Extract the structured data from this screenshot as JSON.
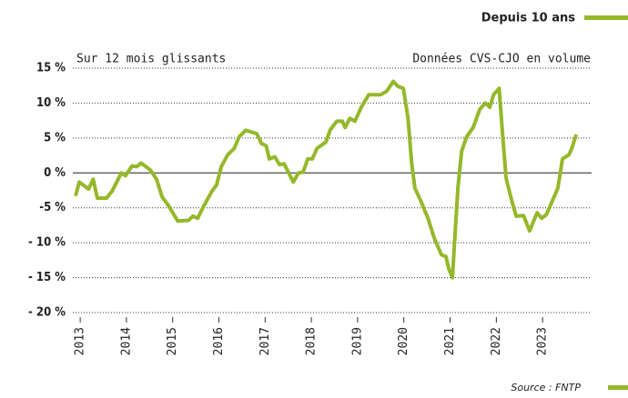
{
  "chart_data": {
    "type": "line",
    "title": "Depuis 10 ans",
    "subtitle": "Sur 12 mois glissants",
    "annotation": "Données CVS-CJO en volume",
    "source": "Source : FNTP",
    "color": "#95b82a",
    "grid": true,
    "x": [
      2012.9,
      2012.98,
      2013.18,
      2013.28,
      2013.37,
      2013.57,
      2013.69,
      2013.89,
      2013.98,
      2014.12,
      2014.22,
      2014.32,
      2014.52,
      2014.65,
      2014.77,
      2014.91,
      2015.11,
      2015.34,
      2015.44,
      2015.54,
      2015.66,
      2015.85,
      2015.95,
      2016.05,
      2016.19,
      2016.33,
      2016.44,
      2016.58,
      2016.82,
      2016.92,
      2017.02,
      2017.09,
      2017.21,
      2017.31,
      2017.41,
      2017.61,
      2017.72,
      2017.82,
      2017.92,
      2018.02,
      2018.12,
      2018.31,
      2018.41,
      2018.55,
      2018.67,
      2018.73,
      2018.83,
      2018.94,
      2019.08,
      2019.24,
      2019.5,
      2019.63,
      2019.77,
      2019.87,
      2019.99,
      2020.09,
      2020.17,
      2020.24,
      2020.36,
      2020.52,
      2020.66,
      2020.81,
      2020.91,
      2020.97,
      2021.05,
      2021.11,
      2021.17,
      2021.25,
      2021.36,
      2021.5,
      2021.64,
      2021.76,
      2021.86,
      2021.94,
      2022.06,
      2022.13,
      2022.21,
      2022.33,
      2022.43,
      2022.59,
      2022.72,
      2022.88,
      2022.98,
      2023.08,
      2023.33,
      2023.43,
      2023.57,
      2023.63,
      2023.73
    ],
    "values": [
      -3.3,
      -1.3,
      -2.3,
      -0.9,
      -3.6,
      -3.6,
      -2.6,
      0,
      -0.4,
      1,
      0.9,
      1.4,
      0.4,
      -0.9,
      -3.4,
      -4.7,
      -6.9,
      -6.8,
      -6.2,
      -6.5,
      -4.9,
      -2.6,
      -1.7,
      0.9,
      2.6,
      3.5,
      5.2,
      6.1,
      5.6,
      4.2,
      3.9,
      2.0,
      2.3,
      1.2,
      1.3,
      -1.3,
      0,
      0.1,
      2.0,
      2.0,
      3.5,
      4.4,
      6.2,
      7.4,
      7.4,
      6.5,
      7.8,
      7.4,
      9.4,
      11.2,
      11.2,
      11.7,
      13.1,
      12.4,
      12.1,
      7.8,
      1.3,
      -2.2,
      -3.9,
      -6.5,
      -9.4,
      -11.7,
      -12.0,
      -13.7,
      -15.0,
      -8.5,
      -2.0,
      3.1,
      5.2,
      6.5,
      9.1,
      10.0,
      9.4,
      11.2,
      12.1,
      5.9,
      -0.7,
      -3.9,
      -6.2,
      -6.1,
      -8.3,
      -5.7,
      -6.5,
      -6.0,
      -2.2,
      2.0,
      2.6,
      3.5,
      5.5
    ],
    "xlim": [
      2012.84,
      2024.06
    ],
    "xticks": [
      2013,
      2014,
      2015,
      2016,
      2017,
      2018,
      2019,
      2020,
      2021,
      2022,
      2023
    ],
    "ylim": [
      -20,
      15
    ],
    "yticks": [
      {
        "value": -20,
        "label": "- 20 %"
      },
      {
        "value": -15,
        "label": "- 15 %"
      },
      {
        "value": -10,
        "label": "- 10 %"
      },
      {
        "value": -5,
        "label": "-5 %"
      },
      {
        "value": 0,
        "label": "0 %"
      },
      {
        "value": 5,
        "label": "5 %"
      },
      {
        "value": 10,
        "label": "10 %"
      },
      {
        "value": 15,
        "label": "15 %"
      }
    ]
  }
}
